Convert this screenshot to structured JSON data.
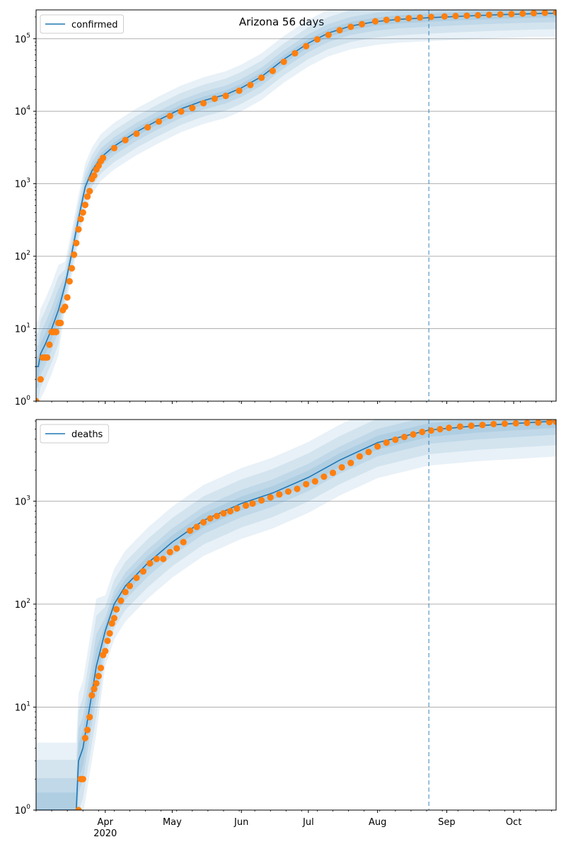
{
  "chart_data": {
    "title": "Arizona 56 days",
    "colors": {
      "model": "#1f77b4",
      "observed": "#ff7f0e",
      "band": "#1f77b4",
      "grid": "#b0b0b0",
      "forecast_line": "#1f77b4"
    },
    "x_axis": {
      "start": "2020-03-01",
      "end": "2020-10-20",
      "month_ticks": [
        {
          "date": "2020-04-01",
          "label": "Apr",
          "sublabel": "2020"
        },
        {
          "date": "2020-05-01",
          "label": "May",
          "sublabel": ""
        },
        {
          "date": "2020-06-01",
          "label": "Jun",
          "sublabel": ""
        },
        {
          "date": "2020-07-01",
          "label": "Jul",
          "sublabel": ""
        },
        {
          "date": "2020-08-01",
          "label": "Aug",
          "sublabel": ""
        },
        {
          "date": "2020-09-01",
          "label": "Sep",
          "sublabel": ""
        },
        {
          "date": "2020-10-01",
          "label": "Oct",
          "sublabel": ""
        }
      ],
      "forecast_start": "2020-08-24"
    },
    "panels": [
      {
        "type": "line",
        "scale": "log",
        "grid": true,
        "legend_position": "top-left",
        "legend": "confirmed",
        "ylim": [
          1,
          250000
        ],
        "yticks": [
          {
            "value": 1,
            "base": "10",
            "exp": "0"
          },
          {
            "value": 10,
            "base": "10",
            "exp": "1"
          },
          {
            "value": 100,
            "base": "10",
            "exp": "2"
          },
          {
            "value": 1000,
            "base": "10",
            "exp": "3"
          },
          {
            "value": 10000,
            "base": "10",
            "exp": "4"
          },
          {
            "value": 100000,
            "base": "10",
            "exp": "5"
          }
        ],
        "model_series": [
          [
            "2020-03-01",
            3
          ],
          [
            "2020-03-02",
            3
          ],
          [
            "2020-03-03",
            4.5
          ],
          [
            "2020-03-05",
            6
          ],
          [
            "2020-03-08",
            10
          ],
          [
            "2020-03-11",
            18
          ],
          [
            "2020-03-14",
            40
          ],
          [
            "2020-03-17",
            110
          ],
          [
            "2020-03-20",
            330
          ],
          [
            "2020-03-23",
            900
          ],
          [
            "2020-03-26",
            1500
          ],
          [
            "2020-03-30",
            2300
          ],
          [
            "2020-04-05",
            3300
          ],
          [
            "2020-04-15",
            5200
          ],
          [
            "2020-04-25",
            7600
          ],
          [
            "2020-05-05",
            10800
          ],
          [
            "2020-05-15",
            14000
          ],
          [
            "2020-05-25",
            17000
          ],
          [
            "2020-06-01",
            21000
          ],
          [
            "2020-06-10",
            30000
          ],
          [
            "2020-06-20",
            52000
          ],
          [
            "2020-07-01",
            87000
          ],
          [
            "2020-07-10",
            120000
          ],
          [
            "2020-07-20",
            150000
          ],
          [
            "2020-07-31",
            172000
          ],
          [
            "2020-08-10",
            185000
          ],
          [
            "2020-08-24",
            195000
          ],
          [
            "2020-09-10",
            206000
          ],
          [
            "2020-09-25",
            215000
          ],
          [
            "2020-10-10",
            222000
          ],
          [
            "2020-10-20",
            225000
          ]
        ],
        "observed_points": [
          [
            "2020-03-01",
            1
          ],
          [
            "2020-03-03",
            2
          ],
          [
            "2020-03-04",
            4
          ],
          [
            "2020-03-05",
            4
          ],
          [
            "2020-03-06",
            4
          ],
          [
            "2020-03-07",
            6
          ],
          [
            "2020-03-08",
            9
          ],
          [
            "2020-03-09",
            9
          ],
          [
            "2020-03-10",
            9
          ],
          [
            "2020-03-11",
            12
          ],
          [
            "2020-03-12",
            12
          ],
          [
            "2020-03-13",
            18
          ],
          [
            "2020-03-14",
            20
          ],
          [
            "2020-03-15",
            27
          ],
          [
            "2020-03-16",
            45
          ],
          [
            "2020-03-17",
            68
          ],
          [
            "2020-03-18",
            105
          ],
          [
            "2020-03-19",
            152
          ],
          [
            "2020-03-20",
            235
          ],
          [
            "2020-03-21",
            325
          ],
          [
            "2020-03-22",
            400
          ],
          [
            "2020-03-23",
            510
          ],
          [
            "2020-03-24",
            665
          ],
          [
            "2020-03-25",
            790
          ],
          [
            "2020-03-26",
            1160
          ],
          [
            "2020-03-27",
            1300
          ],
          [
            "2020-03-28",
            1570
          ],
          [
            "2020-03-29",
            1770
          ],
          [
            "2020-03-30",
            2050
          ],
          [
            "2020-03-31",
            2270
          ],
          [
            "2020-04-05",
            3100
          ],
          [
            "2020-04-10",
            4000
          ],
          [
            "2020-04-15",
            4900
          ],
          [
            "2020-04-20",
            6000
          ],
          [
            "2020-04-25",
            7200
          ],
          [
            "2020-04-30",
            8600
          ],
          [
            "2020-05-05",
            9900
          ],
          [
            "2020-05-10",
            11100
          ],
          [
            "2020-05-15",
            12900
          ],
          [
            "2020-05-20",
            14900
          ],
          [
            "2020-05-25",
            16300
          ],
          [
            "2020-05-31",
            19200
          ],
          [
            "2020-06-05",
            23000
          ],
          [
            "2020-06-10",
            29000
          ],
          [
            "2020-06-15",
            36000
          ],
          [
            "2020-06-20",
            48000
          ],
          [
            "2020-06-25",
            63000
          ],
          [
            "2020-06-30",
            79000
          ],
          [
            "2020-07-05",
            98000
          ],
          [
            "2020-07-10",
            113000
          ],
          [
            "2020-07-15",
            131000
          ],
          [
            "2020-07-20",
            146000
          ],
          [
            "2020-07-25",
            159000
          ],
          [
            "2020-07-31",
            174000
          ],
          [
            "2020-08-05",
            182000
          ],
          [
            "2020-08-10",
            187000
          ],
          [
            "2020-08-15",
            192000
          ],
          [
            "2020-08-20",
            196000
          ],
          [
            "2020-08-25",
            200000
          ],
          [
            "2020-08-31",
            203000
          ],
          [
            "2020-09-05",
            206000
          ],
          [
            "2020-09-10",
            208000
          ],
          [
            "2020-09-15",
            211000
          ],
          [
            "2020-09-20",
            214000
          ],
          [
            "2020-09-25",
            217000
          ],
          [
            "2020-09-30",
            219000
          ],
          [
            "2020-10-05",
            222000
          ],
          [
            "2020-10-10",
            225000
          ],
          [
            "2020-10-15",
            228000
          ],
          [
            "2020-10-20",
            231000
          ]
        ]
      },
      {
        "type": "line",
        "scale": "log",
        "grid": true,
        "legend_position": "top-left",
        "legend": "deaths",
        "ylim": [
          1,
          6200
        ],
        "yticks": [
          {
            "value": 1,
            "base": "10",
            "exp": "0"
          },
          {
            "value": 10,
            "base": "10",
            "exp": "1"
          },
          {
            "value": 100,
            "base": "10",
            "exp": "2"
          },
          {
            "value": 1000,
            "base": "10",
            "exp": "3"
          }
        ],
        "model_series": [
          [
            "2020-03-01",
            1
          ],
          [
            "2020-03-19",
            1
          ],
          [
            "2020-03-20",
            3
          ],
          [
            "2020-03-22",
            4
          ],
          [
            "2020-03-25",
            10
          ],
          [
            "2020-03-28",
            25
          ],
          [
            "2020-04-01",
            55
          ],
          [
            "2020-04-05",
            100
          ],
          [
            "2020-04-10",
            150
          ],
          [
            "2020-04-20",
            250
          ],
          [
            "2020-05-01",
            400
          ],
          [
            "2020-05-15",
            650
          ],
          [
            "2020-06-01",
            950
          ],
          [
            "2020-06-15",
            1200
          ],
          [
            "2020-07-01",
            1700
          ],
          [
            "2020-07-15",
            2500
          ],
          [
            "2020-08-01",
            3700
          ],
          [
            "2020-08-24",
            4900
          ],
          [
            "2020-09-15",
            5400
          ],
          [
            "2020-10-20",
            6000
          ]
        ],
        "observed_points": [
          [
            "2020-03-20",
            1
          ],
          [
            "2020-03-21",
            2
          ],
          [
            "2020-03-22",
            2
          ],
          [
            "2020-03-23",
            5
          ],
          [
            "2020-03-24",
            6
          ],
          [
            "2020-03-25",
            8
          ],
          [
            "2020-03-26",
            13
          ],
          [
            "2020-03-27",
            15
          ],
          [
            "2020-03-28",
            17
          ],
          [
            "2020-03-29",
            20
          ],
          [
            "2020-03-30",
            24
          ],
          [
            "2020-03-31",
            32
          ],
          [
            "2020-04-01",
            35
          ],
          [
            "2020-04-02",
            44
          ],
          [
            "2020-04-03",
            52
          ],
          [
            "2020-04-04",
            65
          ],
          [
            "2020-04-05",
            73
          ],
          [
            "2020-04-06",
            89
          ],
          [
            "2020-04-08",
            108
          ],
          [
            "2020-04-10",
            131
          ],
          [
            "2020-04-12",
            150
          ],
          [
            "2020-04-15",
            180
          ],
          [
            "2020-04-18",
            208
          ],
          [
            "2020-04-21",
            249
          ],
          [
            "2020-04-24",
            275
          ],
          [
            "2020-04-27",
            275
          ],
          [
            "2020-04-30",
            320
          ],
          [
            "2020-05-03",
            348
          ],
          [
            "2020-05-06",
            400
          ],
          [
            "2020-05-09",
            517
          ],
          [
            "2020-05-12",
            562
          ],
          [
            "2020-05-15",
            624
          ],
          [
            "2020-05-18",
            679
          ],
          [
            "2020-05-21",
            717
          ],
          [
            "2020-05-24",
            763
          ],
          [
            "2020-05-27",
            800
          ],
          [
            "2020-05-30",
            848
          ],
          [
            "2020-06-03",
            905
          ],
          [
            "2020-06-06",
            947
          ],
          [
            "2020-06-10",
            1017
          ],
          [
            "2020-06-14",
            1088
          ],
          [
            "2020-06-18",
            1161
          ],
          [
            "2020-06-22",
            1239
          ],
          [
            "2020-06-26",
            1315
          ],
          [
            "2020-06-30",
            1460
          ],
          [
            "2020-07-04",
            1556
          ],
          [
            "2020-07-08",
            1727
          ],
          [
            "2020-07-12",
            1881
          ],
          [
            "2020-07-16",
            2130
          ],
          [
            "2020-07-20",
            2350
          ],
          [
            "2020-07-24",
            2720
          ],
          [
            "2020-07-28",
            3000
          ],
          [
            "2020-08-01",
            3400
          ],
          [
            "2020-08-05",
            3700
          ],
          [
            "2020-08-09",
            3950
          ],
          [
            "2020-08-13",
            4200
          ],
          [
            "2020-08-17",
            4450
          ],
          [
            "2020-08-21",
            4700
          ],
          [
            "2020-08-25",
            4850
          ],
          [
            "2020-08-29",
            5000
          ],
          [
            "2020-09-02",
            5150
          ],
          [
            "2020-09-07",
            5300
          ],
          [
            "2020-09-12",
            5400
          ],
          [
            "2020-09-17",
            5500
          ],
          [
            "2020-09-22",
            5600
          ],
          [
            "2020-09-27",
            5650
          ],
          [
            "2020-10-02",
            5700
          ],
          [
            "2020-10-07",
            5750
          ],
          [
            "2020-10-12",
            5800
          ],
          [
            "2020-10-17",
            5850
          ],
          [
            "2020-10-20",
            5900
          ]
        ]
      }
    ]
  }
}
